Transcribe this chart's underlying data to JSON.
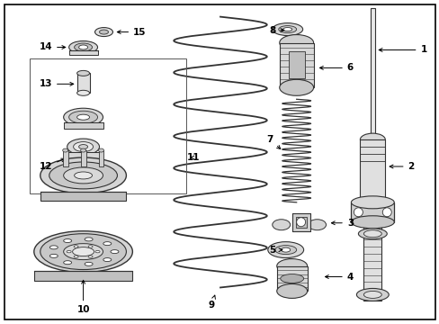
{
  "background_color": "#ffffff",
  "border_color": "#000000",
  "line_color": "#333333",
  "fig_width": 4.89,
  "fig_height": 3.6,
  "dpi": 100,
  "font_size": 7.5
}
